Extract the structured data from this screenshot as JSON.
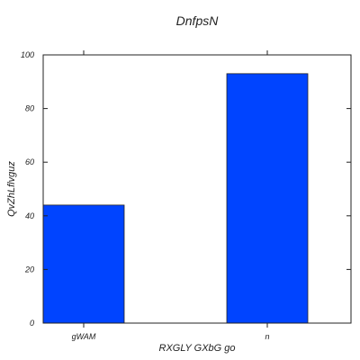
{
  "chart_data": {
    "type": "bar",
    "title": "DnfpsN",
    "xlabel": "RXGLY GXbG go",
    "ylabel": "QvZhLflvguz",
    "categories": [
      "gWAM",
      "n"
    ],
    "values": [
      44,
      93
    ],
    "ylim": [
      0,
      100
    ],
    "yticks": [
      0,
      20,
      40,
      60,
      80,
      100
    ],
    "grid": false,
    "bar_color": "#0044ff"
  }
}
